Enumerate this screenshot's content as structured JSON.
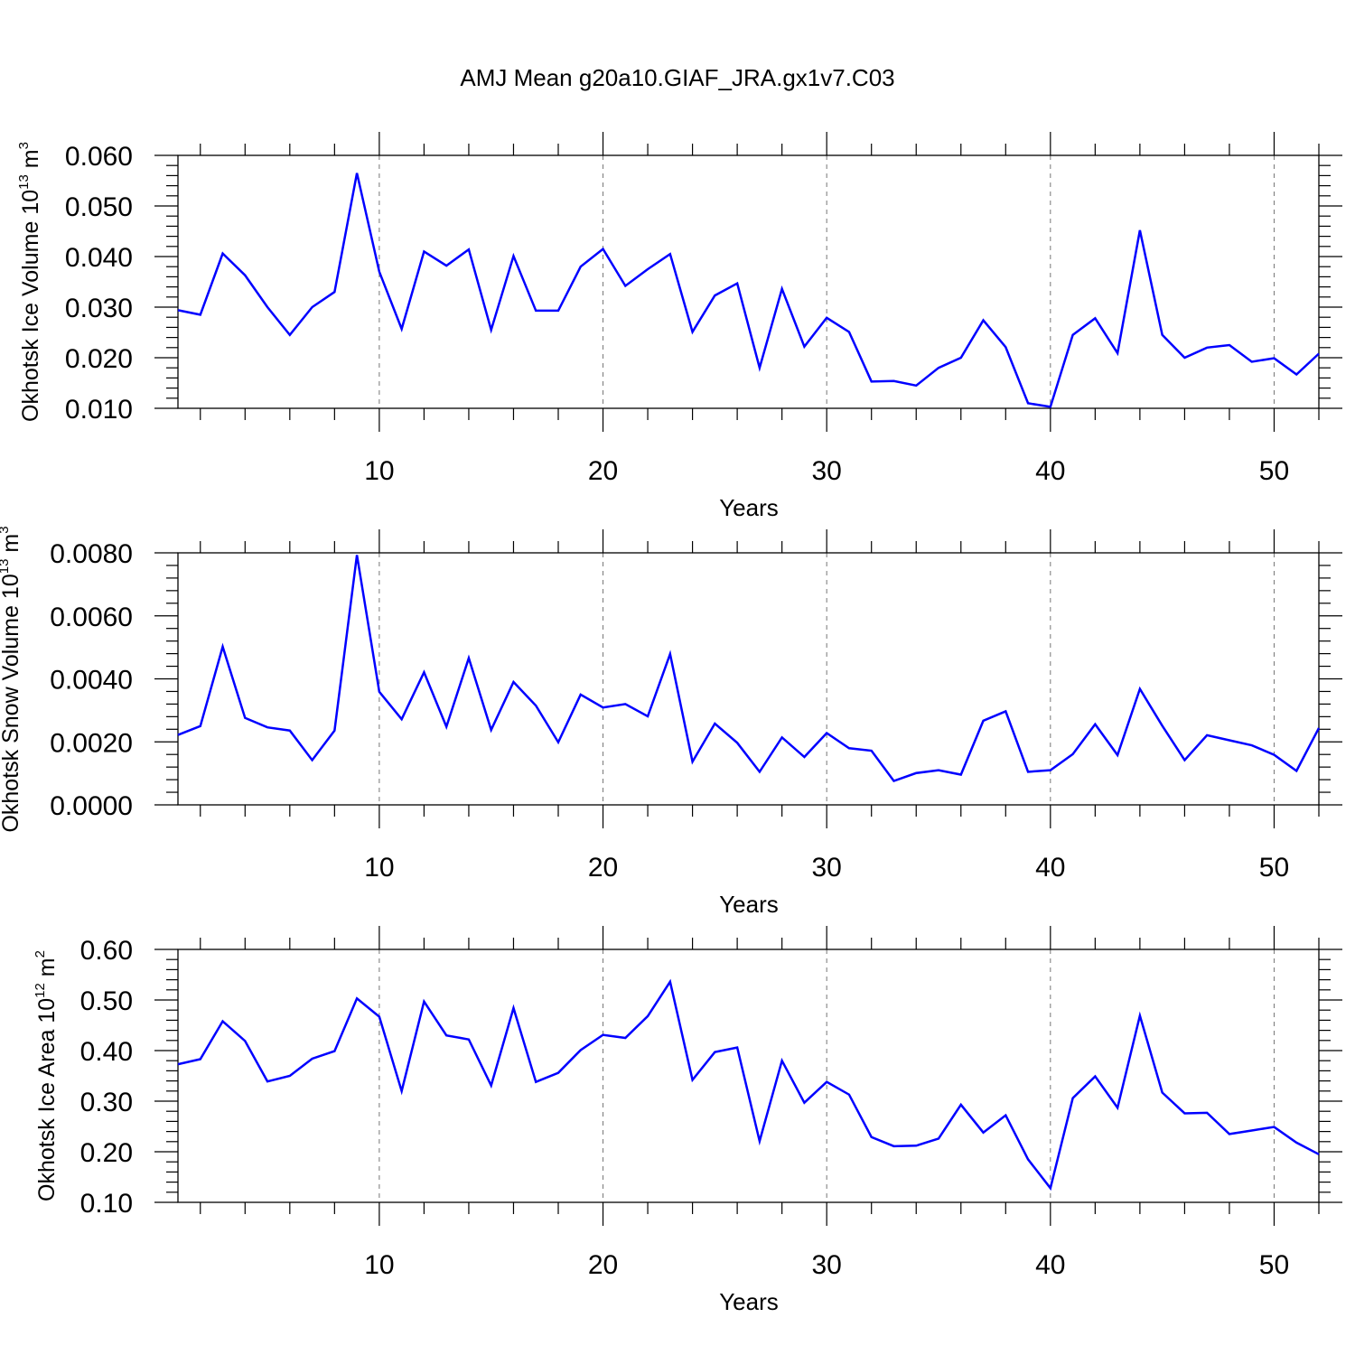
{
  "title": "AMJ Mean g20a10.GIAF_JRA.gx1v7.C03",
  "colors": {
    "line": "#0000ff",
    "axis": "#000000",
    "grid": "#777777"
  },
  "chart_data": [
    {
      "type": "line",
      "ylabel_main": "Okhotsk Ice Volume 10",
      "ylabel_exp": "13",
      "ylabel_unit": " m",
      "ylabel_unit_exp": "3",
      "xlabel": "Years",
      "xlim": [
        1,
        52
      ],
      "ylim": [
        0.01,
        0.06
      ],
      "xticks": [
        10,
        20,
        30,
        40,
        50
      ],
      "xtick_labels": [
        "10",
        "20",
        "30",
        "40",
        "50"
      ],
      "yticks": [
        0.01,
        0.02,
        0.03,
        0.04,
        0.05,
        0.06
      ],
      "ytick_labels": [
        "0.010",
        "0.020",
        "0.030",
        "0.040",
        "0.050",
        "0.060"
      ],
      "x_minor_step": 2,
      "y_minor_step": 0.002,
      "grid_x": [
        10,
        20,
        30,
        40,
        50
      ],
      "x": [
        1,
        2,
        3,
        4,
        5,
        6,
        7,
        8,
        9,
        10,
        11,
        12,
        13,
        14,
        15,
        16,
        17,
        18,
        19,
        20,
        21,
        22,
        23,
        24,
        25,
        26,
        27,
        28,
        29,
        30,
        31,
        32,
        33,
        34,
        35,
        36,
        37,
        38,
        39,
        40,
        41,
        42,
        43,
        44,
        45,
        46,
        47,
        48,
        49,
        50,
        51,
        52
      ],
      "values": [
        0.0294,
        0.0285,
        0.0406,
        0.0363,
        0.03,
        0.0245,
        0.03,
        0.033,
        0.0565,
        0.037,
        0.0257,
        0.041,
        0.0382,
        0.0414,
        0.0255,
        0.0401,
        0.0293,
        0.0293,
        0.038,
        0.0415,
        0.0342,
        0.0375,
        0.0405,
        0.0251,
        0.0323,
        0.0347,
        0.018,
        0.0336,
        0.0222,
        0.0279,
        0.0251,
        0.0153,
        0.0154,
        0.0145,
        0.018,
        0.02,
        0.0274,
        0.0221,
        0.011,
        0.0103,
        0.0245,
        0.0278,
        0.0209,
        0.0452,
        0.0245,
        0.02,
        0.022,
        0.0225,
        0.0192,
        0.0199,
        0.0167,
        0.0208
      ]
    },
    {
      "type": "line",
      "ylabel_main": "Okhotsk Snow Volume 10",
      "ylabel_exp": "13",
      "ylabel_unit": " m",
      "ylabel_unit_exp": "3",
      "xlabel": "Years",
      "xlim": [
        1,
        52
      ],
      "ylim": [
        0.0,
        0.008
      ],
      "xticks": [
        10,
        20,
        30,
        40,
        50
      ],
      "xtick_labels": [
        "10",
        "20",
        "30",
        "40",
        "50"
      ],
      "yticks": [
        0.0,
        0.002,
        0.004,
        0.006,
        0.008
      ],
      "ytick_labels": [
        "0.0000",
        "0.0020",
        "0.0040",
        "0.0060",
        "0.0080"
      ],
      "x_minor_step": 2,
      "y_minor_step": 0.0004,
      "grid_x": [
        10,
        20,
        30,
        40,
        50
      ],
      "x": [
        1,
        2,
        3,
        4,
        5,
        6,
        7,
        8,
        9,
        10,
        11,
        12,
        13,
        14,
        15,
        16,
        17,
        18,
        19,
        20,
        21,
        22,
        23,
        24,
        25,
        26,
        27,
        28,
        29,
        30,
        31,
        32,
        33,
        34,
        35,
        36,
        37,
        38,
        39,
        40,
        41,
        42,
        43,
        44,
        45,
        46,
        47,
        48,
        49,
        50,
        51,
        52
      ],
      "values": [
        0.00222,
        0.0025,
        0.00502,
        0.00276,
        0.00246,
        0.00236,
        0.00142,
        0.00236,
        0.00793,
        0.00359,
        0.00272,
        0.00421,
        0.00248,
        0.00466,
        0.00238,
        0.0039,
        0.00315,
        0.00199,
        0.0035,
        0.00309,
        0.0032,
        0.00281,
        0.00479,
        0.00137,
        0.00258,
        0.00197,
        0.00105,
        0.00214,
        0.00152,
        0.00228,
        0.0018,
        0.00172,
        0.00076,
        0.00101,
        0.0011,
        0.00096,
        0.00267,
        0.00297,
        0.00105,
        0.0011,
        0.00161,
        0.00256,
        0.00158,
        0.00368,
        0.00251,
        0.00142,
        0.00221,
        0.00205,
        0.00189,
        0.00159,
        0.00108,
        0.00244
      ]
    },
    {
      "type": "line",
      "ylabel_main": "Okhotsk Ice Area 10",
      "ylabel_exp": "12",
      "ylabel_unit": " m",
      "ylabel_unit_exp": "2",
      "xlabel": "Years",
      "xlim": [
        1,
        52
      ],
      "ylim": [
        0.1,
        0.6
      ],
      "xticks": [
        10,
        20,
        30,
        40,
        50
      ],
      "xtick_labels": [
        "10",
        "20",
        "30",
        "40",
        "50"
      ],
      "yticks": [
        0.1,
        0.2,
        0.3,
        0.4,
        0.5,
        0.6
      ],
      "ytick_labels": [
        "0.10",
        "0.20",
        "0.30",
        "0.40",
        "0.50",
        "0.60"
      ],
      "x_minor_step": 2,
      "y_minor_step": 0.02,
      "grid_x": [
        10,
        20,
        30,
        40,
        50
      ],
      "x": [
        1,
        2,
        3,
        4,
        5,
        6,
        7,
        8,
        9,
        10,
        11,
        12,
        13,
        14,
        15,
        16,
        17,
        18,
        19,
        20,
        21,
        22,
        23,
        24,
        25,
        26,
        27,
        28,
        29,
        30,
        31,
        32,
        33,
        34,
        35,
        36,
        37,
        38,
        39,
        40,
        41,
        42,
        43,
        44,
        45,
        46,
        47,
        48,
        49,
        50,
        51,
        52
      ],
      "values": [
        0.373,
        0.383,
        0.458,
        0.419,
        0.339,
        0.35,
        0.384,
        0.399,
        0.503,
        0.467,
        0.32,
        0.497,
        0.43,
        0.422,
        0.331,
        0.484,
        0.338,
        0.356,
        0.401,
        0.431,
        0.425,
        0.468,
        0.536,
        0.342,
        0.397,
        0.406,
        0.221,
        0.38,
        0.297,
        0.338,
        0.313,
        0.229,
        0.211,
        0.212,
        0.226,
        0.293,
        0.238,
        0.272,
        0.185,
        0.128,
        0.306,
        0.349,
        0.287,
        0.469,
        0.317,
        0.276,
        0.277,
        0.235,
        0.242,
        0.249,
        0.218,
        0.195
      ]
    }
  ]
}
